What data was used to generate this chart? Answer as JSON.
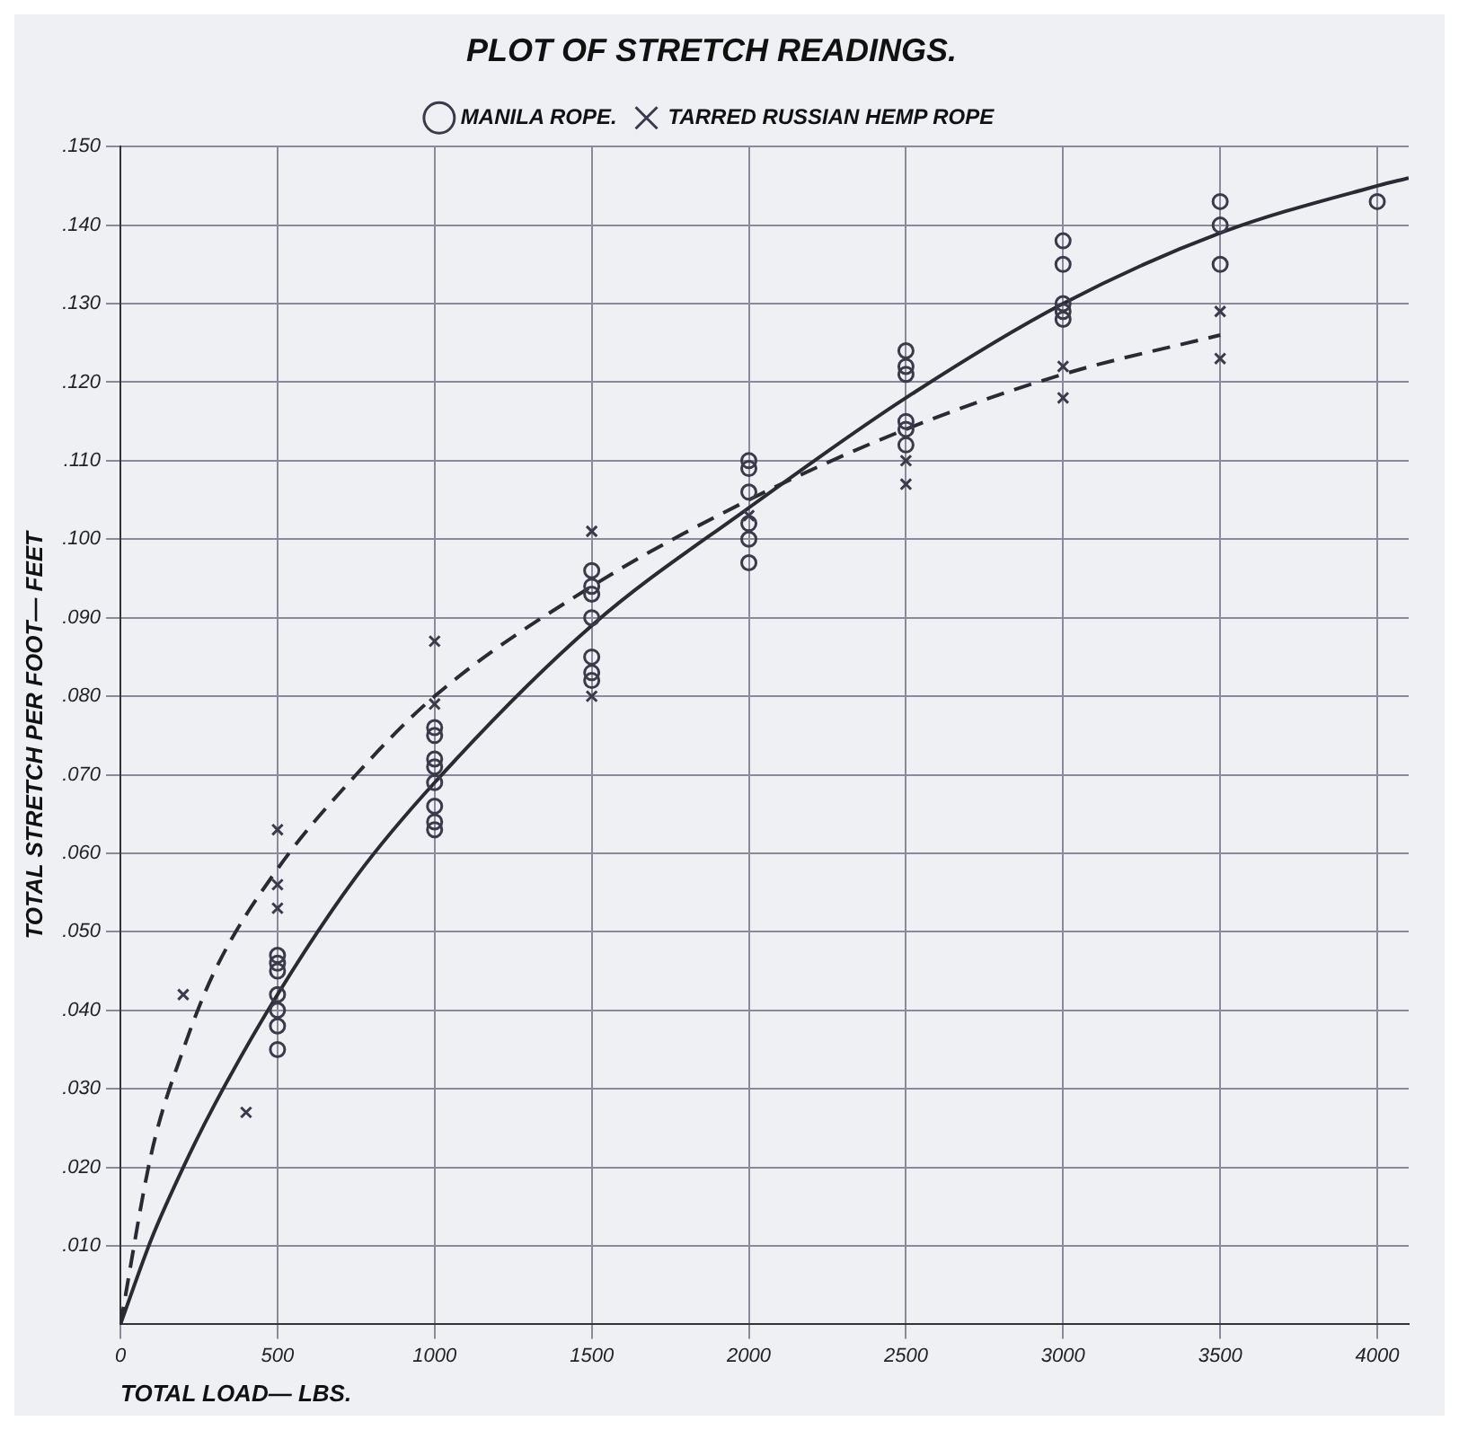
{
  "chart_data": {
    "type": "scatter",
    "title": "PLOT OF STRETCH READINGS.",
    "xlabel": "TOTAL LOAD— LBS.",
    "ylabel": "TOTAL STRETCH PER FOOT— FEET",
    "legend": "top",
    "grid": true,
    "xlim": [
      0,
      4100
    ],
    "xticks": [
      0,
      500,
      1000,
      1500,
      2000,
      2500,
      3000,
      3500,
      4000
    ],
    "ylim": [
      0,
      0.15
    ],
    "yticks": [
      {
        "value": 0.01,
        "label": ".010"
      },
      {
        "value": 0.02,
        "label": ".020"
      },
      {
        "value": 0.03,
        "label": ".030"
      },
      {
        "value": 0.04,
        "label": ".040"
      },
      {
        "value": 0.05,
        "label": ".050"
      },
      {
        "value": 0.06,
        "label": ".060"
      },
      {
        "value": 0.07,
        "label": ".070"
      },
      {
        "value": 0.08,
        "label": ".080"
      },
      {
        "value": 0.09,
        "label": ".090"
      },
      {
        "value": 0.1,
        "label": ".100"
      },
      {
        "value": 0.11,
        "label": ".110"
      },
      {
        "value": 0.12,
        "label": ".120"
      },
      {
        "value": 0.13,
        "label": ".130"
      },
      {
        "value": 0.14,
        "label": ".140"
      },
      {
        "value": 0.15,
        "label": ".150"
      }
    ],
    "series": [
      {
        "name": "MANILA ROPE.",
        "type": "scatter",
        "marker": "circle",
        "line_style": "solid",
        "color": "#3a3a4a",
        "x": [
          500,
          500,
          500,
          500,
          500,
          500,
          500,
          1000,
          1000,
          1000,
          1000,
          1000,
          1000,
          1000,
          1000,
          1500,
          1500,
          1500,
          1500,
          1500,
          1500,
          1500,
          2000,
          2000,
          2000,
          2000,
          2000,
          2000,
          2500,
          2500,
          2500,
          2500,
          2500,
          2500,
          3000,
          3000,
          3000,
          3000,
          3000,
          3500,
          3500,
          3500,
          4000
        ],
        "values": [
          0.035,
          0.038,
          0.04,
          0.042,
          0.045,
          0.046,
          0.047,
          0.063,
          0.064,
          0.066,
          0.069,
          0.071,
          0.072,
          0.075,
          0.076,
          0.082,
          0.083,
          0.085,
          0.09,
          0.093,
          0.094,
          0.096,
          0.097,
          0.1,
          0.102,
          0.106,
          0.109,
          0.11,
          0.112,
          0.114,
          0.115,
          0.121,
          0.122,
          0.124,
          0.128,
          0.129,
          0.13,
          0.135,
          0.138,
          0.135,
          0.14,
          0.143,
          0.143
        ]
      },
      {
        "name": "TARRED RUSSIAN HEMP ROPE",
        "type": "scatter",
        "marker": "cross",
        "line_style": "dashed",
        "color": "#3a3a4a",
        "x": [
          200,
          400,
          500,
          500,
          500,
          1000,
          1000,
          1500,
          1500,
          2000,
          2500,
          2500,
          3000,
          3000,
          3500,
          3500
        ],
        "values": [
          0.042,
          0.027,
          0.063,
          0.056,
          0.053,
          0.087,
          0.079,
          0.101,
          0.08,
          0.103,
          0.107,
          0.11,
          0.118,
          0.122,
          0.123,
          0.129
        ]
      },
      {
        "type": "line",
        "line_style": "solid",
        "color": "#2a2a33",
        "x": [
          0,
          100,
          200,
          300,
          500,
          750,
          1000,
          1500,
          2000,
          2500,
          3000,
          3500,
          4000,
          4100
        ],
        "values": [
          0,
          0.011,
          0.02,
          0.028,
          0.042,
          0.057,
          0.069,
          0.089,
          0.104,
          0.118,
          0.13,
          0.139,
          0.145,
          0.146
        ]
      },
      {
        "type": "line",
        "line_style": "dashed",
        "color": "#2a2a33",
        "x": [
          0,
          100,
          200,
          300,
          500,
          750,
          1000,
          1500,
          2000,
          2500,
          3000,
          3500
        ],
        "values": [
          0,
          0.022,
          0.035,
          0.045,
          0.058,
          0.07,
          0.08,
          0.094,
          0.105,
          0.114,
          0.121,
          0.126
        ]
      }
    ]
  }
}
